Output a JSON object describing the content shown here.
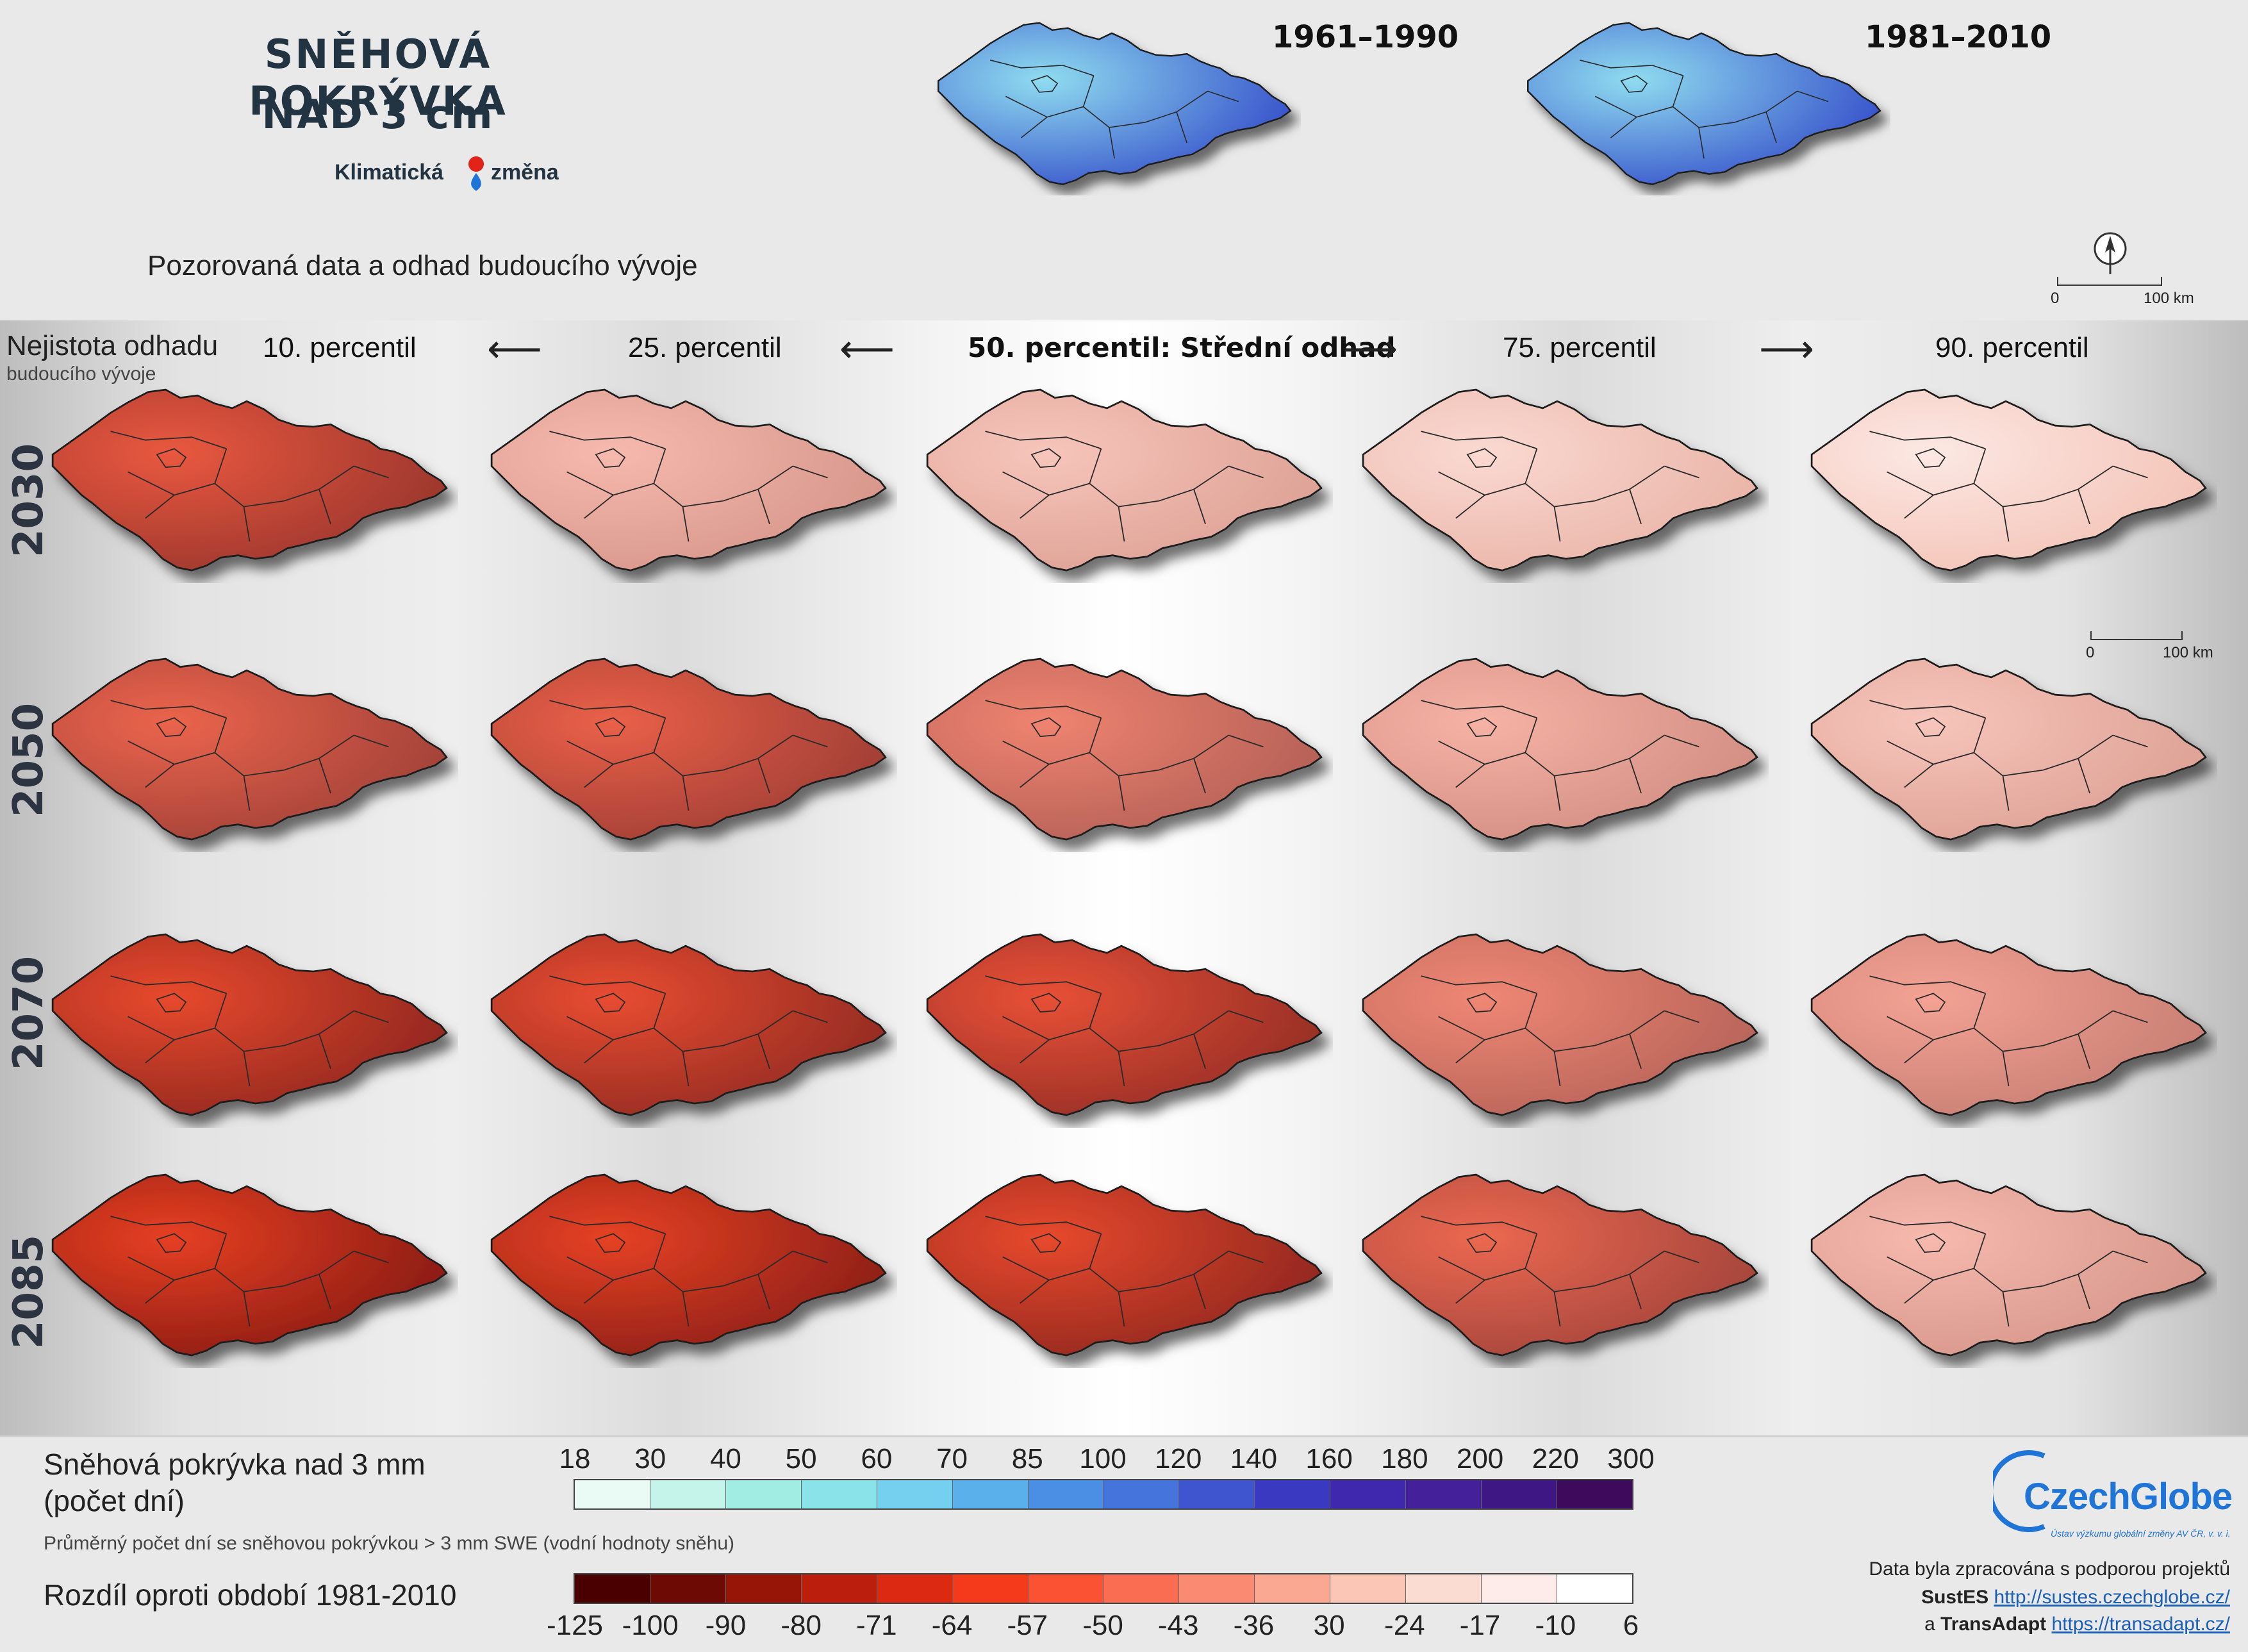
{
  "header": {
    "title_line1": "SNĚHOVÁ POKRÝVKA",
    "title_line2": "NAD 3 cm",
    "brand_left": "Klimatická",
    "brand_right": "změna",
    "subtitle": "Pozorovaná data a odhad budoucího vývoje",
    "period1": "1961–1990",
    "period2": "1981–2010",
    "scale_zero": "0",
    "scale_100": "100 km"
  },
  "grid": {
    "uncertainty_label_line1": "Nejistota odhadu",
    "uncertainty_label_line2": "budoucího vývoje",
    "percentiles": [
      "10. percentil",
      "25. percentil",
      "50. percentil: Střední odhad",
      "75. percentil",
      "90. percentil"
    ],
    "years": [
      "2030",
      "2050",
      "2070",
      "2085"
    ],
    "scale_zero": "0",
    "scale_100": "100 km",
    "intensity": [
      [
        0.78,
        0.28,
        0.22,
        0.12,
        0.04
      ],
      [
        0.72,
        0.74,
        0.56,
        0.32,
        0.22
      ],
      [
        0.86,
        0.84,
        0.82,
        0.54,
        0.4
      ],
      [
        0.92,
        0.9,
        0.86,
        0.7,
        0.28
      ]
    ]
  },
  "legend": {
    "snow_title_line1": "Sněhová pokrývka nad 3 mm",
    "snow_title_line2": "(počet dní)",
    "snow_note": "Průměrný počet dní se sněhovou pokrývkou > 3 mm SWE (vodní hodnoty sněhu)",
    "snow_ticks": [
      "18",
      "30",
      "40",
      "50",
      "60",
      "70",
      "85",
      "100",
      "120",
      "140",
      "160",
      "180",
      "200",
      "220",
      "300"
    ],
    "snow_colors": [
      "#e9fbf4",
      "#c4f4ea",
      "#a2ede3",
      "#89e3e8",
      "#74d0ee",
      "#5ab0ea",
      "#4a8fe3",
      "#4474dc",
      "#3f55d0",
      "#3a39c1",
      "#3f28ad",
      "#45209b",
      "#3e1785",
      "#3d0a5c"
    ],
    "diff_title": "Rozdíl oproti období 1981-2010",
    "diff_ticks": [
      "-125",
      "-100",
      "-90",
      "-80",
      "-71",
      "-64",
      "-57",
      "-50",
      "-43",
      "-36",
      "30",
      "-24",
      "-17",
      "-10",
      "6"
    ],
    "diff_colors": [
      "#4a0000",
      "#6e0a04",
      "#961507",
      "#bb1e0c",
      "#dc2a12",
      "#f43a1b",
      "#fb5234",
      "#fb6d52",
      "#fb8a72",
      "#fba893",
      "#fbc6b6",
      "#fbdcd2",
      "#fdecea",
      "#ffffff"
    ]
  },
  "footer": {
    "logo": "CzechGlobe",
    "logo_sub": "Ústav výzkumu globální změny AV ČR, v. v. i.",
    "credit_line1": "Data byla zpracována s podporou projektů",
    "project1": "SustES",
    "link1": "http://sustes.czechglobe.cz/",
    "prefix2": "a",
    "project2": "TransAdapt",
    "link2": "https://transadapt.cz/"
  },
  "colors": {
    "title": "#223342",
    "blue_map": "#3f6fe0",
    "red_map": "#e8301a"
  }
}
